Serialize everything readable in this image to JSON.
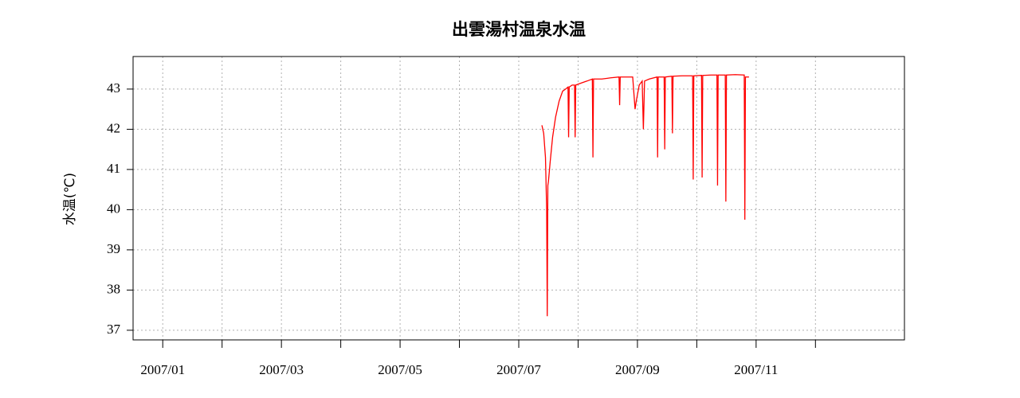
{
  "chart_data": {
    "type": "line",
    "title": "出雲湯村温泉水温",
    "y_label": "水温(℃)",
    "x": [
      7.39,
      7.42,
      7.45,
      7.47,
      7.48,
      7.49,
      7.5,
      7.53,
      7.57,
      7.62,
      7.68,
      7.74,
      7.79,
      7.83,
      7.84,
      7.85,
      7.9,
      7.94,
      7.95,
      7.96,
      8.05,
      8.15,
      8.24,
      8.25,
      8.26,
      8.4,
      8.55,
      8.69,
      8.7,
      8.71,
      8.85,
      8.92,
      8.96,
      8.98,
      9.03,
      9.08,
      9.1,
      9.12,
      9.2,
      9.33,
      9.34,
      9.35,
      9.45,
      9.46,
      9.47,
      9.58,
      9.59,
      9.6,
      9.75,
      9.93,
      9.94,
      9.95,
      10.08,
      10.09,
      10.1,
      10.25,
      10.34,
      10.35,
      10.36,
      10.48,
      10.49,
      10.5,
      10.65,
      10.8,
      10.81,
      10.82,
      10.88
    ],
    "values": [
      42.1,
      41.9,
      41.3,
      40.0,
      37.35,
      40.6,
      40.7,
      41.2,
      41.8,
      42.3,
      42.7,
      42.95,
      43.0,
      43.05,
      41.8,
      43.05,
      43.1,
      43.1,
      41.8,
      43.1,
      43.15,
      43.2,
      43.25,
      41.3,
      43.25,
      43.25,
      43.28,
      43.3,
      42.6,
      43.3,
      43.3,
      43.3,
      42.5,
      42.7,
      43.1,
      43.2,
      42.0,
      43.2,
      43.25,
      43.3,
      41.3,
      43.3,
      43.3,
      41.5,
      43.3,
      43.32,
      41.9,
      43.32,
      43.33,
      43.33,
      40.75,
      43.33,
      43.34,
      40.8,
      43.34,
      43.35,
      43.35,
      40.6,
      43.35,
      43.35,
      40.2,
      43.35,
      43.36,
      43.35,
      39.75,
      43.3,
      43.3
    ],
    "color": "#ff0000",
    "xlim": [
      0.5,
      13.5
    ],
    "xticks": [
      {
        "value": 1,
        "label": "2007/01"
      },
      {
        "value": 3,
        "label": "2007/03"
      },
      {
        "value": 5,
        "label": "2007/05"
      },
      {
        "value": 7,
        "label": "2007/07"
      },
      {
        "value": 9,
        "label": "2007/09"
      },
      {
        "value": 11,
        "label": "2007/11"
      }
    ],
    "xminor_ticks": [
      2,
      4,
      6,
      8,
      10,
      12
    ],
    "ylim": [
      36.76,
      43.81
    ],
    "yticks": [
      37,
      38,
      39,
      40,
      41,
      42,
      43
    ],
    "grid": true
  }
}
